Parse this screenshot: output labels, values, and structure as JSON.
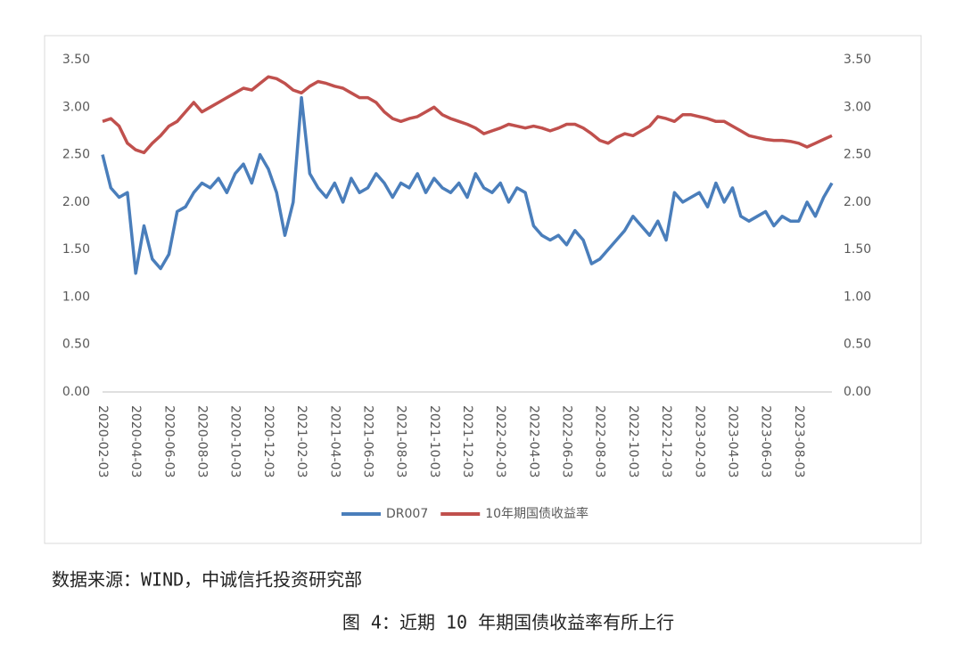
{
  "chart_data": {
    "type": "line",
    "categories": [
      "2020-02-03",
      null,
      null,
      null,
      "2020-04-03",
      null,
      null,
      null,
      "2020-06-03",
      null,
      null,
      null,
      "2020-08-03",
      null,
      null,
      null,
      "2020-10-03",
      null,
      null,
      null,
      "2020-12-03",
      null,
      null,
      null,
      "2021-02-03",
      null,
      null,
      null,
      "2021-04-03",
      null,
      null,
      null,
      "2021-06-03",
      null,
      null,
      null,
      "2021-08-03",
      null,
      null,
      null,
      "2021-10-03",
      null,
      null,
      null,
      "2021-12-03",
      null,
      null,
      null,
      "2022-02-03",
      null,
      null,
      null,
      "2022-04-03",
      null,
      null,
      null,
      "2022-06-03",
      null,
      null,
      null,
      "2022-08-03",
      null,
      null,
      null,
      "2022-10-03",
      null,
      null,
      null,
      "2022-12-03",
      null,
      null,
      null,
      "2023-02-03",
      null,
      null,
      null,
      "2023-04-03",
      null,
      null,
      null,
      "2023-06-03",
      null,
      null,
      null,
      "2023-08-03",
      null,
      null,
      null,
      null
    ],
    "series": [
      {
        "name": "DR007",
        "color": "#4a7ebb",
        "values": [
          2.5,
          2.15,
          2.05,
          2.1,
          1.25,
          1.75,
          1.4,
          1.3,
          1.45,
          1.9,
          1.95,
          2.1,
          2.2,
          2.15,
          2.25,
          2.1,
          2.3,
          2.4,
          2.2,
          2.5,
          2.35,
          2.1,
          1.65,
          2.0,
          3.1,
          2.3,
          2.15,
          2.05,
          2.2,
          2.0,
          2.25,
          2.1,
          2.15,
          2.3,
          2.2,
          2.05,
          2.2,
          2.15,
          2.3,
          2.1,
          2.25,
          2.15,
          2.1,
          2.2,
          2.05,
          2.3,
          2.15,
          2.1,
          2.2,
          2.0,
          2.15,
          2.1,
          1.75,
          1.65,
          1.6,
          1.65,
          1.55,
          1.7,
          1.6,
          1.35,
          1.4,
          1.5,
          1.6,
          1.7,
          1.85,
          1.75,
          1.65,
          1.8,
          1.6,
          2.1,
          2.0,
          2.05,
          2.1,
          1.95,
          2.2,
          2.0,
          2.15,
          1.85,
          1.8,
          1.85,
          1.9,
          1.75,
          1.85,
          1.8,
          1.8,
          2.0,
          1.85,
          2.05,
          2.2
        ]
      },
      {
        "name": "10年期国债收益率",
        "color": "#c0504d",
        "axis": "y2",
        "values": [
          2.85,
          2.88,
          2.8,
          2.62,
          2.55,
          2.52,
          2.62,
          2.7,
          2.8,
          2.85,
          2.95,
          3.05,
          2.95,
          3.0,
          3.05,
          3.1,
          3.15,
          3.2,
          3.18,
          3.25,
          3.32,
          3.3,
          3.25,
          3.18,
          3.15,
          3.22,
          3.27,
          3.25,
          3.22,
          3.2,
          3.15,
          3.1,
          3.1,
          3.05,
          2.95,
          2.88,
          2.85,
          2.88,
          2.9,
          2.95,
          3.0,
          2.92,
          2.88,
          2.85,
          2.82,
          2.78,
          2.72,
          2.75,
          2.78,
          2.82,
          2.8,
          2.78,
          2.8,
          2.78,
          2.75,
          2.78,
          2.82,
          2.82,
          2.78,
          2.72,
          2.65,
          2.62,
          2.68,
          2.72,
          2.7,
          2.75,
          2.8,
          2.9,
          2.88,
          2.85,
          2.92,
          2.92,
          2.9,
          2.88,
          2.85,
          2.85,
          2.8,
          2.75,
          2.7,
          2.68,
          2.66,
          2.65,
          2.65,
          2.64,
          2.62,
          2.58,
          2.62,
          2.66,
          2.7
        ]
      }
    ],
    "ylim": [
      0,
      3.5
    ],
    "yticks": [
      {
        "value": 0,
        "label": "0.00"
      },
      {
        "value": 0.5,
        "label": "0.50"
      },
      {
        "value": 1,
        "label": "1.00"
      },
      {
        "value": 1.5,
        "label": "1.50"
      },
      {
        "value": 2,
        "label": "2.00"
      },
      {
        "value": 2.5,
        "label": "2.50"
      },
      {
        "value": 3,
        "label": "3.00"
      },
      {
        "value": 3.5,
        "label": "3.50"
      }
    ],
    "y2lim": [
      0,
      3.5
    ],
    "y2ticks": [
      {
        "value": 0,
        "label": "0.00"
      },
      {
        "value": 0.5,
        "label": "0.50"
      },
      {
        "value": 1,
        "label": "1.00"
      },
      {
        "value": 1.5,
        "label": "1.50"
      },
      {
        "value": 2,
        "label": "2.00"
      },
      {
        "value": 2.5,
        "label": "2.50"
      },
      {
        "value": 3,
        "label": "3.00"
      },
      {
        "value": 3.5,
        "label": "3.50"
      }
    ],
    "legend": "bottom"
  },
  "source": "数据来源：WIND，中诚信托投资研究部",
  "caption": "图 4：近期 10 年期国债收益率有所上行"
}
